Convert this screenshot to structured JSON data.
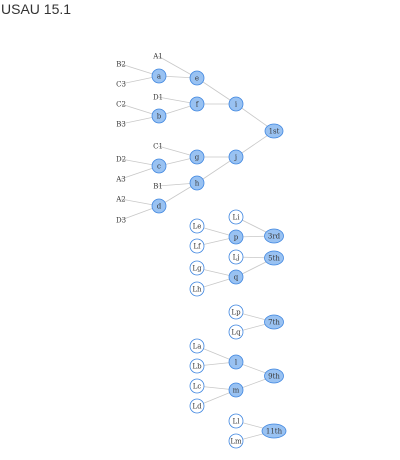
{
  "title": "USAU 15.1",
  "colors": {
    "filled": "#99c2f2",
    "outline": "#3f86e0",
    "empty": "#ffffff",
    "edge": "#c8c8c8",
    "label": "#3a3a3a"
  },
  "nodes": [
    {
      "id": "A1",
      "label": "A1",
      "kind": "text"
    },
    {
      "id": "B2",
      "label": "B2",
      "kind": "text"
    },
    {
      "id": "C3",
      "label": "C3",
      "kind": "text"
    },
    {
      "id": "D1",
      "label": "D1",
      "kind": "text"
    },
    {
      "id": "C2",
      "label": "C2",
      "kind": "text"
    },
    {
      "id": "B3",
      "label": "B3",
      "kind": "text"
    },
    {
      "id": "C1",
      "label": "C1",
      "kind": "text"
    },
    {
      "id": "D2",
      "label": "D2",
      "kind": "text"
    },
    {
      "id": "A3",
      "label": "A3",
      "kind": "text"
    },
    {
      "id": "B1",
      "label": "B1",
      "kind": "text"
    },
    {
      "id": "A2",
      "label": "A2",
      "kind": "text"
    },
    {
      "id": "D3",
      "label": "D3",
      "kind": "text"
    },
    {
      "id": "a",
      "label": "a",
      "kind": "filled"
    },
    {
      "id": "b",
      "label": "b",
      "kind": "filled"
    },
    {
      "id": "c",
      "label": "c",
      "kind": "filled"
    },
    {
      "id": "d",
      "label": "d",
      "kind": "filled"
    },
    {
      "id": "e",
      "label": "e",
      "kind": "filled"
    },
    {
      "id": "f",
      "label": "f",
      "kind": "filled"
    },
    {
      "id": "g",
      "label": "g",
      "kind": "filled"
    },
    {
      "id": "h",
      "label": "h",
      "kind": "filled"
    },
    {
      "id": "i",
      "label": "i",
      "kind": "filled"
    },
    {
      "id": "j",
      "label": "j",
      "kind": "filled"
    },
    {
      "id": "1st",
      "label": "1st",
      "kind": "filled"
    },
    {
      "id": "Le",
      "label": "Le",
      "kind": "empty"
    },
    {
      "id": "Lf",
      "label": "Lf",
      "kind": "empty"
    },
    {
      "id": "Lg",
      "label": "Lg",
      "kind": "empty"
    },
    {
      "id": "Lh",
      "label": "Lh",
      "kind": "empty"
    },
    {
      "id": "Li",
      "label": "Li",
      "kind": "empty"
    },
    {
      "id": "p",
      "label": "p",
      "kind": "filled"
    },
    {
      "id": "Lj",
      "label": "Lj",
      "kind": "empty"
    },
    {
      "id": "q",
      "label": "q",
      "kind": "filled"
    },
    {
      "id": "3rd",
      "label": "3rd",
      "kind": "filled"
    },
    {
      "id": "5th",
      "label": "5th",
      "kind": "filled"
    },
    {
      "id": "Lp",
      "label": "Lp",
      "kind": "empty"
    },
    {
      "id": "Lq",
      "label": "Lq",
      "kind": "empty"
    },
    {
      "id": "7th",
      "label": "7th",
      "kind": "filled"
    },
    {
      "id": "La",
      "label": "La",
      "kind": "empty"
    },
    {
      "id": "Lb",
      "label": "Lb",
      "kind": "empty"
    },
    {
      "id": "Lc",
      "label": "Lc",
      "kind": "empty"
    },
    {
      "id": "Ld",
      "label": "Ld",
      "kind": "empty"
    },
    {
      "id": "l",
      "label": "l",
      "kind": "filled"
    },
    {
      "id": "m",
      "label": "m",
      "kind": "filled"
    },
    {
      "id": "9th",
      "label": "9th",
      "kind": "filled"
    },
    {
      "id": "Ll",
      "label": "Ll",
      "kind": "empty"
    },
    {
      "id": "Lm",
      "label": "Lm",
      "kind": "empty"
    },
    {
      "id": "11th",
      "label": "11th",
      "kind": "filled"
    }
  ],
  "edges": [
    [
      "B2",
      "a"
    ],
    [
      "C3",
      "a"
    ],
    [
      "C2",
      "b"
    ],
    [
      "B3",
      "b"
    ],
    [
      "D2",
      "c"
    ],
    [
      "A3",
      "c"
    ],
    [
      "A2",
      "d"
    ],
    [
      "D3",
      "d"
    ],
    [
      "A1",
      "e"
    ],
    [
      "a",
      "e"
    ],
    [
      "D1",
      "f"
    ],
    [
      "b",
      "f"
    ],
    [
      "C1",
      "g"
    ],
    [
      "c",
      "g"
    ],
    [
      "B1",
      "h"
    ],
    [
      "d",
      "h"
    ],
    [
      "e",
      "i"
    ],
    [
      "f",
      "i"
    ],
    [
      "g",
      "j"
    ],
    [
      "h",
      "j"
    ],
    [
      "i",
      "1st"
    ],
    [
      "j",
      "1st"
    ],
    [
      "Le",
      "p"
    ],
    [
      "Lf",
      "p"
    ],
    [
      "Lg",
      "q"
    ],
    [
      "Lh",
      "q"
    ],
    [
      "Li",
      "3rd"
    ],
    [
      "p",
      "3rd"
    ],
    [
      "Lj",
      "5th"
    ],
    [
      "q",
      "5th"
    ],
    [
      "Lp",
      "7th"
    ],
    [
      "Lq",
      "7th"
    ],
    [
      "La",
      "l"
    ],
    [
      "Lb",
      "l"
    ],
    [
      "Lc",
      "m"
    ],
    [
      "Ld",
      "m"
    ],
    [
      "l",
      "9th"
    ],
    [
      "m",
      "9th"
    ],
    [
      "Ll",
      "11th"
    ],
    [
      "Lm",
      "11th"
    ]
  ]
}
